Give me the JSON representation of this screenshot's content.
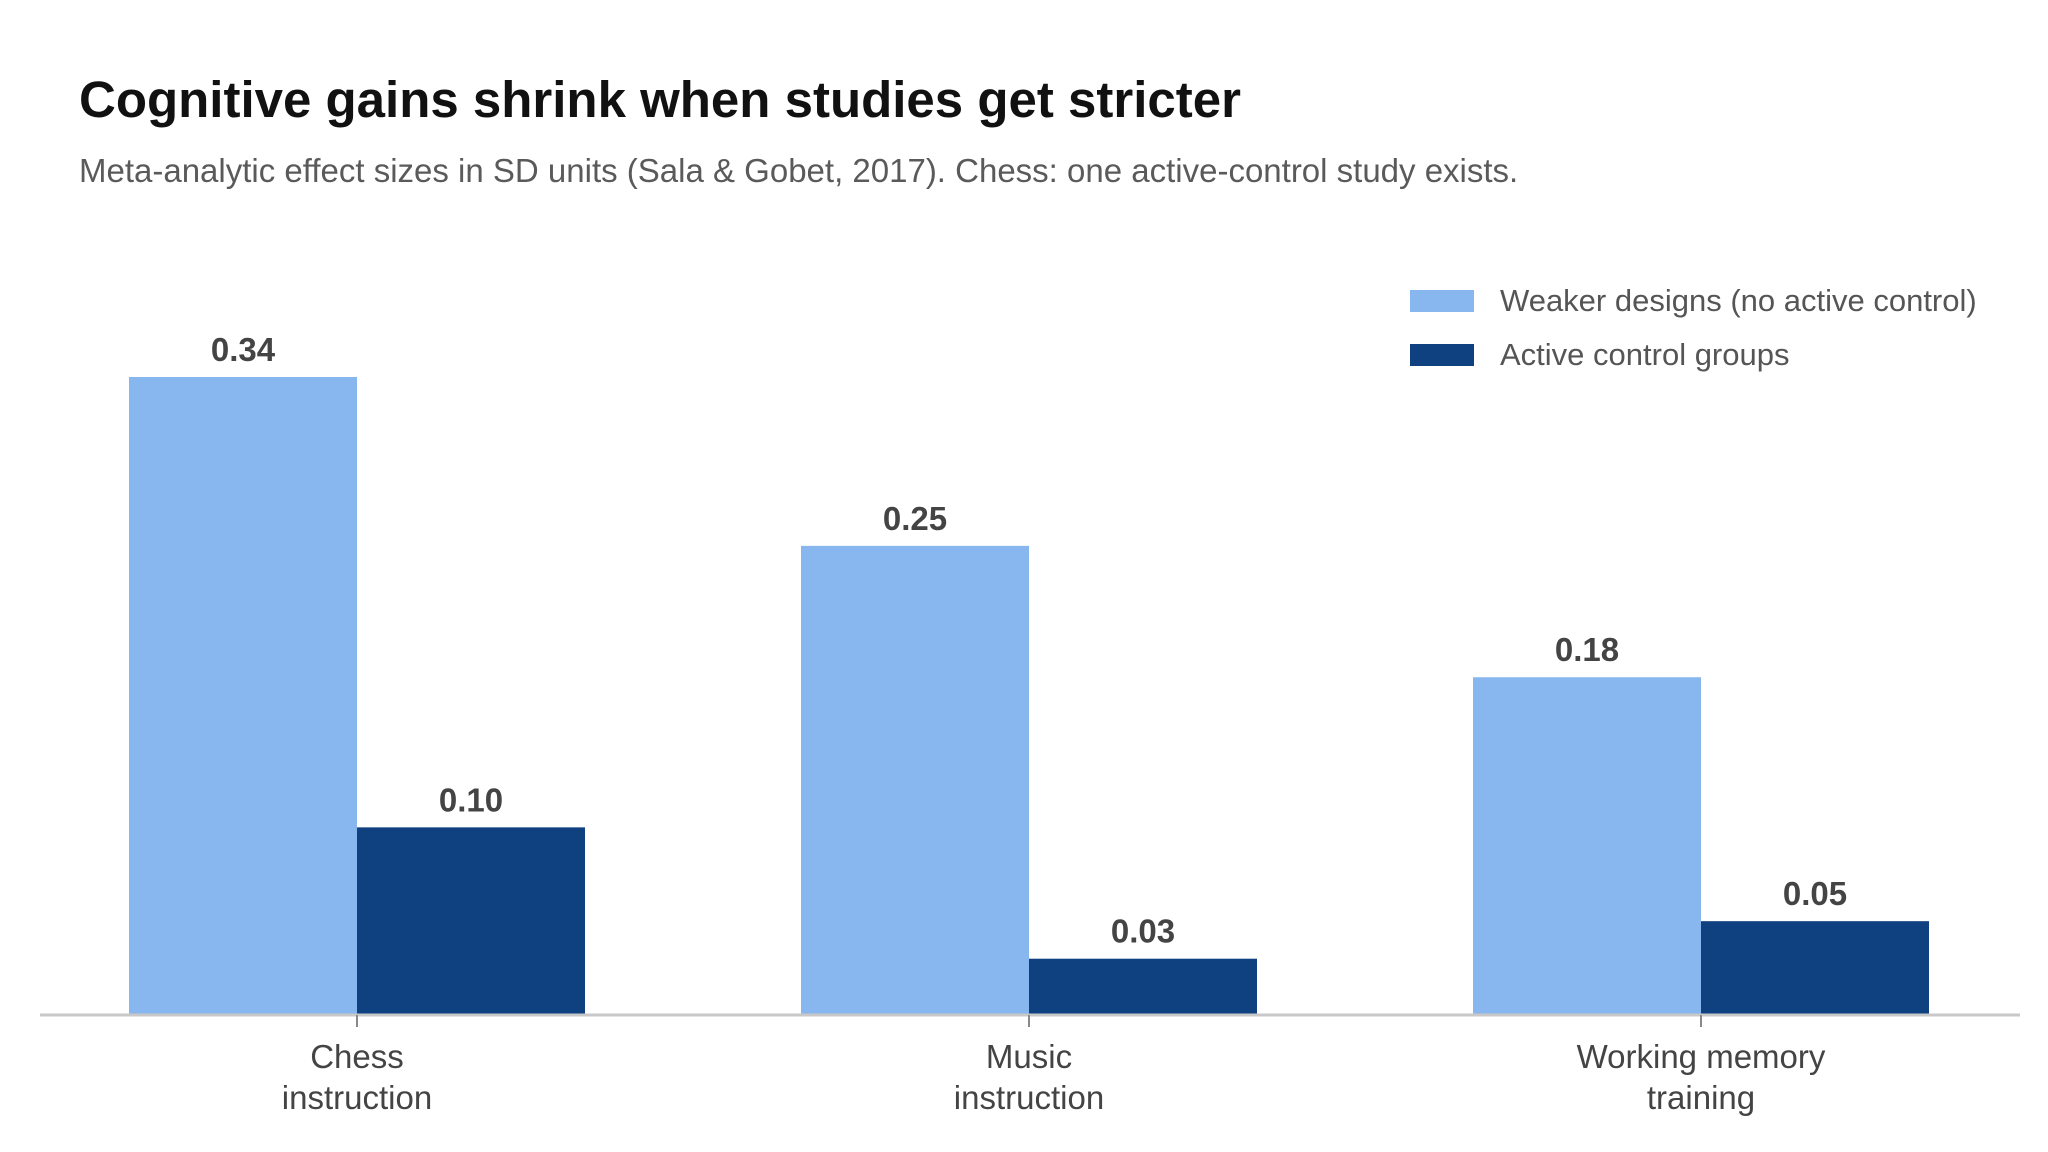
{
  "title": "Cognitive gains shrink when studies get stricter",
  "subtitle": "Meta-analytic effect sizes in SD units (Sala & Gobet, 2017). Chess: one active-control study exists.",
  "colors": {
    "weaker": "#88b6ef",
    "active": "#0f4080",
    "axis": "#c8c8c8",
    "text": "#444444"
  },
  "chart_data": {
    "type": "bar",
    "categories": [
      [
        "Chess",
        "instruction"
      ],
      [
        "Music",
        "instruction"
      ],
      [
        "Working memory",
        "training"
      ]
    ],
    "series": [
      {
        "name": "Weaker designs (no active control)",
        "values": [
          0.34,
          0.25,
          0.18
        ],
        "labels": [
          "0.34",
          "0.25",
          "0.18"
        ]
      },
      {
        "name": "Active control groups",
        "values": [
          0.1,
          0.03,
          0.05
        ],
        "labels": [
          "0.10",
          "0.03",
          "0.05"
        ]
      }
    ],
    "ylim": [
      0,
      0.34
    ],
    "grid": false,
    "legend": "top-right"
  }
}
